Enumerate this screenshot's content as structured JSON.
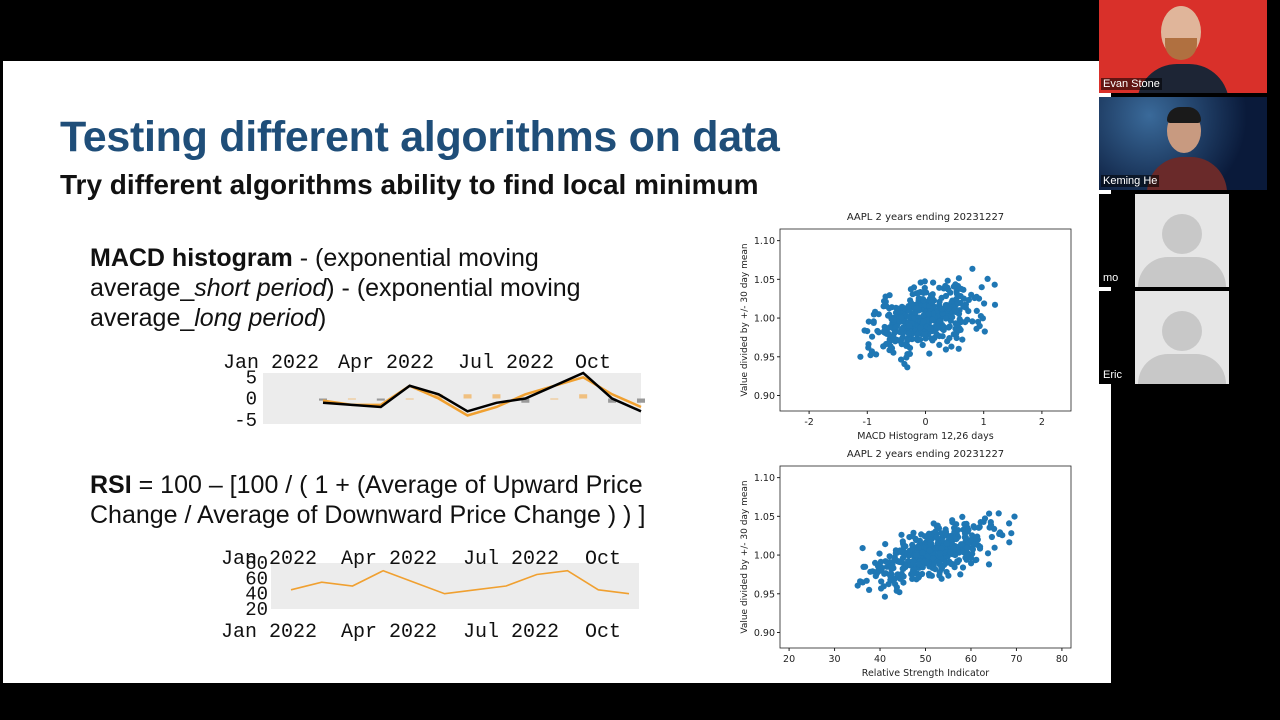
{
  "slide": {
    "title": "Testing different algorithms on data",
    "subtitle": "Try different algorithms ability to find local minimum",
    "macd_formula": {
      "bold": "MACD histogram",
      "p1": " - (exponential moving",
      "p2": "average_",
      "italic1": "short period",
      "p3": ") - (exponential moving",
      "p4": "average_",
      "italic2": "long period",
      "p5": ")"
    },
    "rsi_formula": {
      "bold": "RSI",
      "line1": " = 100 – [100 / ( 1 + (Average of Upward Price",
      "line2": "Change / Average of Downward Price Change ) ) ]"
    }
  },
  "charts": {
    "macd_mini": {
      "x_ticks": [
        "Jan 2022",
        "Apr 2022",
        "Jul 2022",
        "Oct"
      ],
      "y_ticks": [
        "5",
        "0",
        "-5"
      ],
      "colors": {
        "macd": "#000000",
        "signal": "#f0a030",
        "hist": "#999999",
        "hist_pos": "#f0c080"
      }
    },
    "rsi_mini": {
      "x_ticks_top": [
        "Jan 2022",
        "Apr 2022",
        "Jul 2022",
        "Oct"
      ],
      "x_ticks_bottom": [
        "Jan 2022",
        "Apr 2022",
        "Jul 2022",
        "Oct"
      ],
      "y_ticks": [
        "80",
        "60",
        "40",
        "20"
      ],
      "colors": {
        "line": "#f0a030"
      }
    }
  },
  "chart_data": [
    {
      "type": "line",
      "title": "",
      "x": [
        "2022-01",
        "2022-02",
        "2022-03",
        "2022-04",
        "2022-05",
        "2022-06",
        "2022-07",
        "2022-08",
        "2022-09",
        "2022-10",
        "2022-11",
        "2022-12"
      ],
      "series": [
        {
          "values": [
            -1,
            -1.5,
            -2,
            3,
            1,
            -3,
            -1,
            0,
            3,
            6,
            0,
            -3
          ]
        },
        {
          "values": [
            -0.5,
            -1.5,
            -1.5,
            3,
            0,
            -4,
            -2,
            1,
            3,
            5,
            1,
            -2
          ]
        }
      ],
      "ylim": [
        -6,
        6
      ]
    },
    {
      "type": "line",
      "title": "",
      "x": [
        "2022-01",
        "2022-02",
        "2022-03",
        "2022-04",
        "2022-05",
        "2022-06",
        "2022-07",
        "2022-08",
        "2022-09",
        "2022-10",
        "2022-11",
        "2022-12"
      ],
      "series": [
        {
          "values": [
            45,
            55,
            50,
            70,
            55,
            40,
            45,
            50,
            65,
            70,
            45,
            40
          ]
        }
      ],
      "ylim": [
        20,
        80
      ]
    },
    {
      "type": "scatter",
      "title": "AAPL 2 years ending 20231227",
      "xlabel": "MACD Histogram 12,26 days",
      "ylabel": "Value divided by +/- 30 day mean",
      "xlim": [
        -2.5,
        2.5
      ],
      "ylim": [
        0.88,
        1.115
      ],
      "x_ticks": [
        -2,
        -1,
        0,
        1,
        2
      ],
      "y_ticks": [
        0.9,
        0.95,
        1.0,
        1.05,
        1.1
      ],
      "color": "#1f77b4"
    },
    {
      "type": "scatter",
      "title": "AAPL 2 years ending 20231227",
      "xlabel": "Relative Strength Indicator",
      "ylabel": "Value divided by +/- 30 day mean",
      "xlim": [
        18,
        82
      ],
      "ylim": [
        0.88,
        1.115
      ],
      "x_ticks": [
        20,
        30,
        40,
        50,
        60,
        70,
        80
      ],
      "y_ticks": [
        0.9,
        0.95,
        1.0,
        1.05,
        1.1
      ],
      "color": "#1f77b4"
    }
  ],
  "participants": [
    {
      "name": "Evan Stone",
      "bg": "#d9302a"
    },
    {
      "name": "Keming He",
      "bg": "#0a1a3a"
    },
    {
      "name": "mo",
      "bg": "#e6e6e6"
    },
    {
      "name": "Eric",
      "bg": "#e6e6e6"
    }
  ]
}
